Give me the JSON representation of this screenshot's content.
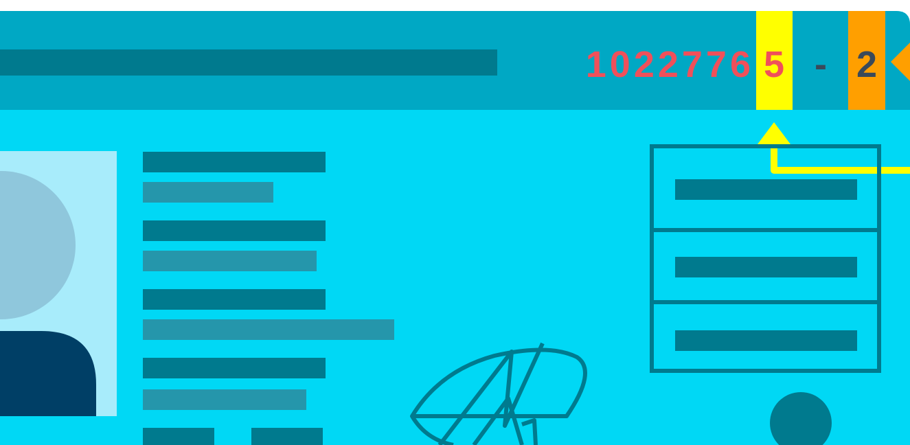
{
  "id_number": {
    "main": "1022776",
    "check_digit": "5",
    "separator": "-",
    "version": "2"
  }
}
